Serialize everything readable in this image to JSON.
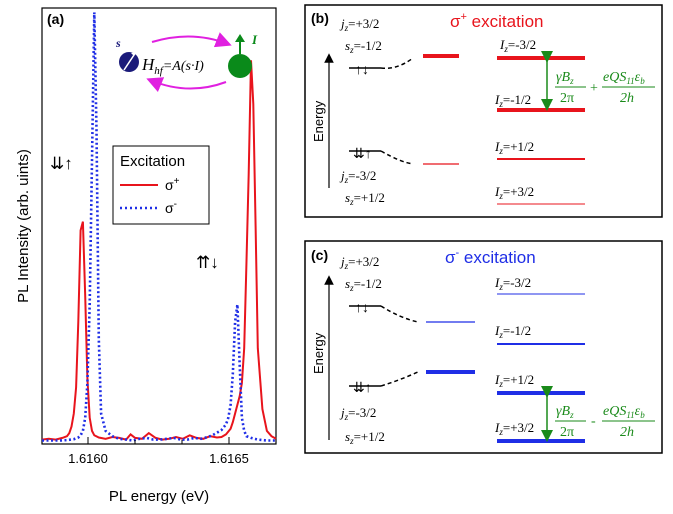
{
  "chart_data": {
    "type": "line",
    "panel_label": "(a)",
    "xlabel": "PL energy (eV)",
    "ylabel": "PL Intensity (arb. uints)",
    "x_ticks": [
      "1.6160",
      "1.6165"
    ],
    "xlim": [
      1.61589,
      1.61692
    ],
    "ylim": [
      0,
      1
    ],
    "legend": {
      "title": "Excitation",
      "placement": "center-right",
      "entries": [
        {
          "label_base": "σ",
          "label_sup": "+",
          "color": "#e8141c",
          "style": "solid"
        },
        {
          "label_base": "σ",
          "label_sup": "-",
          "color": "#1f2ee6",
          "style": "dotted"
        }
      ]
    },
    "series": [
      {
        "style": "solid",
        "color": "#e8141c",
        "x": [
          1.61589,
          1.61592,
          1.61595,
          1.61598,
          1.616,
          1.61601,
          1.61602,
          1.61603,
          1.61604,
          1.61605,
          1.61606,
          1.61607,
          1.61608,
          1.61609,
          1.6161,
          1.61611,
          1.61612,
          1.61614,
          1.61617,
          1.6162,
          1.61623,
          1.61626,
          1.61628,
          1.6163,
          1.61633,
          1.61636,
          1.61639,
          1.61642,
          1.61645,
          1.61648,
          1.61651,
          1.61654,
          1.61657,
          1.6166,
          1.61663,
          1.61666,
          1.61668,
          1.6167,
          1.61672,
          1.61673,
          1.61674,
          1.61675,
          1.61676,
          1.61677,
          1.61678,
          1.61679,
          1.6168,
          1.61681,
          1.61682,
          1.61683,
          1.61684,
          1.61686,
          1.61688,
          1.6169,
          1.61692
        ],
        "y": [
          0.01,
          0.012,
          0.01,
          0.014,
          0.018,
          0.025,
          0.04,
          0.07,
          0.13,
          0.28,
          0.49,
          0.51,
          0.34,
          0.15,
          0.06,
          0.03,
          0.02,
          0.015,
          0.012,
          0.016,
          0.014,
          0.01,
          0.022,
          0.014,
          0.012,
          0.025,
          0.014,
          0.01,
          0.012,
          0.016,
          0.012,
          0.02,
          0.014,
          0.012,
          0.018,
          0.015,
          0.016,
          0.022,
          0.035,
          0.05,
          0.07,
          0.09,
          0.11,
          0.14,
          0.22,
          0.42,
          0.62,
          0.88,
          0.78,
          0.5,
          0.22,
          0.08,
          0.03,
          0.018,
          0.012
        ]
      },
      {
        "style": "dotted",
        "color": "#1f2ee6",
        "x": [
          1.61589,
          1.61593,
          1.61597,
          1.616,
          1.61603,
          1.61605,
          1.61606,
          1.61607,
          1.61608,
          1.61609,
          1.6161,
          1.61611,
          1.61612,
          1.61613,
          1.61614,
          1.61615,
          1.61617,
          1.6162,
          1.61623,
          1.61626,
          1.61629,
          1.61632,
          1.61635,
          1.61638,
          1.61641,
          1.61644,
          1.61647,
          1.6165,
          1.61653,
          1.61656,
          1.61659,
          1.61662,
          1.61664,
          1.61666,
          1.61668,
          1.6167,
          1.61671,
          1.61672,
          1.61673,
          1.61674,
          1.61675,
          1.61676,
          1.61677,
          1.61678,
          1.61679,
          1.61681,
          1.61684,
          1.61688,
          1.61692
        ],
        "y": [
          0.008,
          0.008,
          0.008,
          0.009,
          0.011,
          0.015,
          0.02,
          0.03,
          0.06,
          0.14,
          0.32,
          0.65,
          0.99,
          0.72,
          0.24,
          0.07,
          0.03,
          0.018,
          0.012,
          0.01,
          0.008,
          0.012,
          0.014,
          0.01,
          0.01,
          0.012,
          0.014,
          0.01,
          0.01,
          0.014,
          0.012,
          0.016,
          0.02,
          0.026,
          0.032,
          0.045,
          0.06,
          0.09,
          0.16,
          0.28,
          0.32,
          0.18,
          0.06,
          0.03,
          0.018,
          0.014,
          0.01,
          0.008,
          0.008
        ]
      }
    ]
  },
  "panel_a": {
    "left_peak_arrows": "⇊↑",
    "right_peak_arrows": "⇈↓",
    "inset_s": "s",
    "inset_I": "I",
    "inset_H": "H",
    "inset_H_sub": "hf",
    "inset_eq": "=A(s·I)",
    "colors": {
      "electron": "#1a1a7a",
      "nucleus": "#0a8a1a",
      "arrow": "#e020e0"
    }
  },
  "panel_b": {
    "label": "(b)",
    "title_base": "σ",
    "title_sup": "+",
    "title_rest": " excitation",
    "title_color": "#e8141c",
    "energy_label": "Energy",
    "jz_top": "=+3/2",
    "sz_top": "=-1/2",
    "jz_bottom": "=-3/2",
    "sz_bottom": "=+1/2",
    "top_state_arrows": "↑↓",
    "bottom_state_arrows": "⇊↑",
    "levels": [
      "=-3/2",
      "=-1/2",
      "=+1/2",
      "=+3/2"
    ],
    "formula": {
      "gamma": "γB",
      "z": "z",
      "two_pi": "2π",
      "sign": "+",
      "eq": "eQS",
      "s11": "11",
      "eps": "ε",
      "b": "b",
      "two_h": "2h"
    },
    "level_color": "#e8141c",
    "formula_color": "#1a8a1a"
  },
  "panel_c": {
    "label": "(c)",
    "title_base": "σ",
    "title_sup": "-",
    "title_rest": " excitation",
    "title_color": "#1f2ee6",
    "energy_label": "Energy",
    "jz_top": "=+3/2",
    "sz_top": "=-1/2",
    "jz_bottom": "=-3/2",
    "sz_bottom": "=+1/2",
    "top_state_arrows": "↑↓",
    "bottom_state_arrows": "⇊↑",
    "levels": [
      "=-3/2",
      "=-1/2",
      "=+1/2",
      "=+3/2"
    ],
    "formula": {
      "gamma": "γB",
      "z": "z",
      "two_pi": "2π",
      "sign": "-",
      "eq": "eQS",
      "s11": "11",
      "eps": "ε",
      "b": "b",
      "two_h": "2h"
    },
    "level_color": "#1f2ee6",
    "formula_color": "#1a8a1a"
  }
}
